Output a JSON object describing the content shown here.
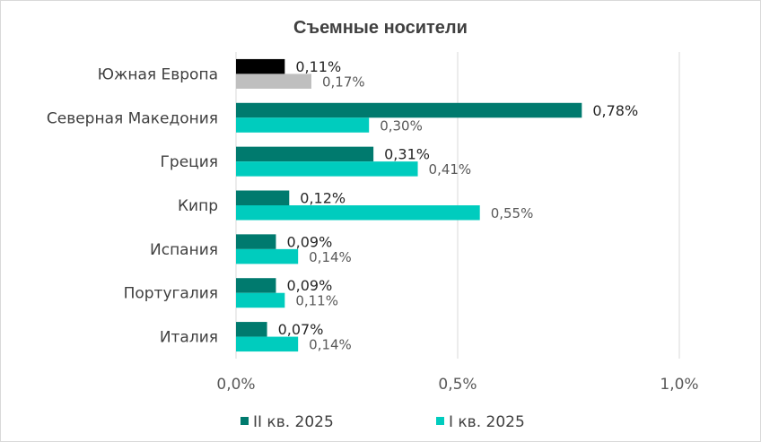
{
  "chart_data": {
    "type": "bar",
    "orientation": "horizontal",
    "title": "Съемные носители",
    "categories": [
      "Южная Европа",
      "Северная Македония",
      "Греция",
      "Кипр",
      "Испания",
      "Португалия",
      "Италия"
    ],
    "series": [
      {
        "name": "II кв. 2025",
        "values": [
          0.11,
          0.78,
          0.31,
          0.12,
          0.09,
          0.09,
          0.07
        ],
        "labels": [
          "0,11%",
          "0,78%",
          "0,31%",
          "0,12%",
          "0,09%",
          "0,09%",
          "0,07%"
        ],
        "color": "#007a6e",
        "highlight_color": "#000000"
      },
      {
        "name": "I кв. 2025",
        "values": [
          0.17,
          0.3,
          0.41,
          0.55,
          0.14,
          0.11,
          0.14
        ],
        "labels": [
          "0,17%",
          "0,30%",
          "0,41%",
          "0,55%",
          "0,14%",
          "0,11%",
          "0,14%"
        ],
        "color": "#00ccbe",
        "highlight_color": "#bfbfbf"
      }
    ],
    "xlim": [
      0,
      1.0
    ],
    "xticks": [
      0,
      0.5,
      1.0
    ],
    "xtick_labels": [
      "0,0%",
      "0,5%",
      "1,0%"
    ],
    "grid": "vertical",
    "legend": "bottom",
    "highlight_category": "Южная Европа"
  }
}
